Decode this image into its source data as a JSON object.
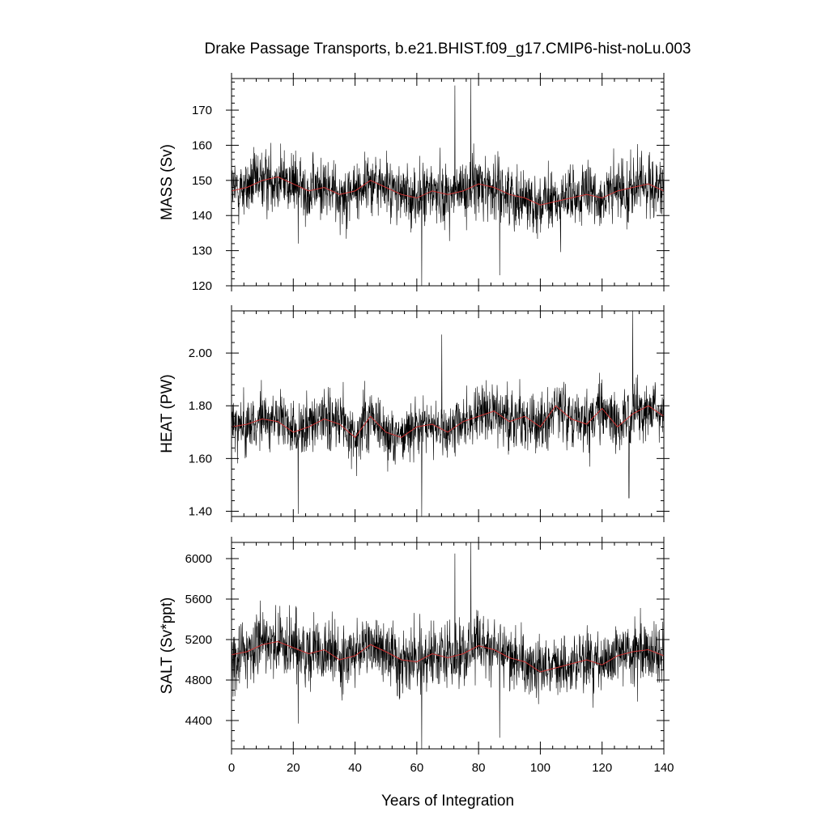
{
  "title": "Drake Passage Transports, b.e21.BHIST.f09_g17.CMIP6-hist-noLu.003",
  "colors": {
    "raw": "#000000",
    "smoothed": "#cc3333"
  },
  "chart_data": [
    {
      "type": "line",
      "ylabel": "MASS (Sv)",
      "xlim": [
        0,
        140
      ],
      "ylim": [
        120,
        179
      ],
      "yticks": [
        120,
        130,
        140,
        150,
        160,
        170
      ],
      "ytick_labels": [
        "120",
        "130",
        "140",
        "150",
        "160",
        "170"
      ],
      "yminor_step": 2,
      "raw": {
        "mean": 147,
        "amp": 6.5,
        "spikes": [
          [
            21.6,
            132
          ],
          [
            61.6,
            120
          ],
          [
            72.3,
            177
          ],
          [
            77.5,
            179
          ],
          [
            86.8,
            123
          ]
        ]
      },
      "smoothed": {
        "x": [
          0,
          5,
          10,
          15,
          20,
          25,
          30,
          35,
          40,
          45,
          50,
          55,
          60,
          65,
          70,
          75,
          80,
          85,
          90,
          95,
          100,
          105,
          110,
          115,
          120,
          125,
          130,
          135,
          140
        ],
        "y": [
          147,
          148,
          150,
          151,
          149,
          147,
          148,
          146,
          147,
          150,
          148,
          146,
          145,
          147,
          146,
          147,
          149,
          148,
          146,
          145,
          143,
          144,
          145,
          146,
          145,
          147,
          148,
          149,
          147
        ]
      },
      "show_xtick_labels": false,
      "xlabel": ""
    },
    {
      "type": "line",
      "ylabel": "HEAT (PW)",
      "xlim": [
        0,
        140
      ],
      "ylim": [
        1.38,
        2.16
      ],
      "yticks": [
        1.4,
        1.6,
        1.8,
        2.0
      ],
      "ytick_labels": [
        "1.40",
        "1.60",
        "1.80",
        "2.00"
      ],
      "yminor_step": 0.04,
      "raw": {
        "mean": 1.73,
        "amp": 0.08,
        "spikes": [
          [
            21.6,
            1.39
          ],
          [
            61.6,
            1.38
          ],
          [
            68.1,
            2.07
          ],
          [
            129.9,
            2.16
          ],
          [
            128.7,
            1.45
          ]
        ]
      },
      "smoothed": {
        "x": [
          0,
          5,
          10,
          15,
          20,
          25,
          30,
          35,
          40,
          45,
          50,
          55,
          60,
          65,
          70,
          75,
          80,
          85,
          90,
          95,
          100,
          105,
          110,
          115,
          120,
          125,
          130,
          135,
          140
        ],
        "y": [
          1.72,
          1.73,
          1.75,
          1.74,
          1.7,
          1.72,
          1.75,
          1.73,
          1.68,
          1.76,
          1.7,
          1.68,
          1.72,
          1.73,
          1.7,
          1.74,
          1.76,
          1.78,
          1.74,
          1.76,
          1.72,
          1.8,
          1.75,
          1.73,
          1.79,
          1.72,
          1.77,
          1.8,
          1.76
        ]
      },
      "show_xtick_labels": false,
      "xlabel": ""
    },
    {
      "type": "line",
      "ylabel": "SALT (Sv*ppt)",
      "xlim": [
        0,
        140
      ],
      "ylim": [
        4120,
        6160
      ],
      "yticks": [
        4400,
        4800,
        5200,
        5600,
        6000
      ],
      "ytick_labels": [
        "4400",
        "4800",
        "5200",
        "5600",
        "6000"
      ],
      "yminor_step": 100,
      "raw": {
        "mean": 5040,
        "amp": 230,
        "spikes": [
          [
            21.6,
            4370
          ],
          [
            61.6,
            4120
          ],
          [
            72.3,
            6050
          ],
          [
            77.5,
            6160
          ],
          [
            86.8,
            4230
          ]
        ]
      },
      "smoothed": {
        "x": [
          0,
          5,
          10,
          15,
          20,
          25,
          30,
          35,
          40,
          45,
          50,
          55,
          60,
          65,
          70,
          75,
          80,
          85,
          90,
          95,
          100,
          105,
          110,
          115,
          120,
          125,
          130,
          135,
          140
        ],
        "y": [
          5050,
          5080,
          5150,
          5180,
          5120,
          5060,
          5100,
          5000,
          5040,
          5150,
          5080,
          5000,
          4980,
          5060,
          5020,
          5060,
          5140,
          5100,
          5020,
          4980,
          4880,
          4920,
          4960,
          5000,
          4950,
          5040,
          5080,
          5100,
          5040
        ]
      },
      "show_xtick_labels": true,
      "xlabel": "Years of Integration"
    }
  ],
  "xticks": [
    0,
    20,
    40,
    60,
    80,
    100,
    120,
    140
  ],
  "xtick_labels": [
    "0",
    "20",
    "40",
    "60",
    "80",
    "100",
    "120",
    "140"
  ],
  "xminor_step": 4,
  "sample_step": 0.0833333
}
